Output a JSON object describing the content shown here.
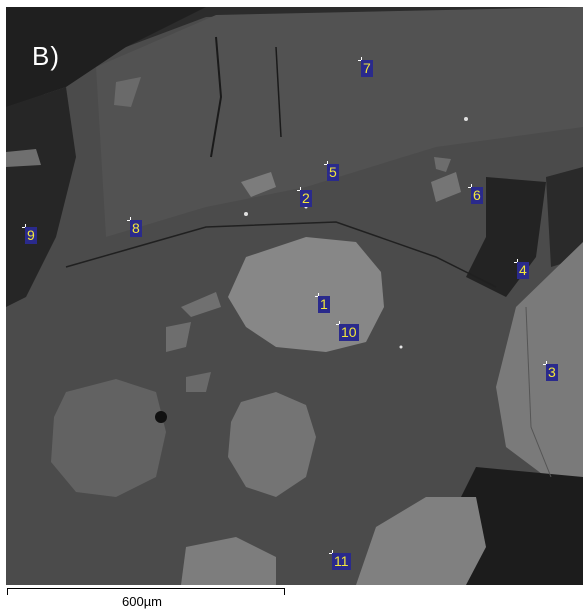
{
  "panel_label": "B)",
  "scale_label": "600µm",
  "spots": [
    {
      "id": "spot-1",
      "label": "1"
    },
    {
      "id": "spot-2",
      "label": "2"
    },
    {
      "id": "spot-3",
      "label": "3"
    },
    {
      "id": "spot-4",
      "label": "4"
    },
    {
      "id": "spot-5",
      "label": "5"
    },
    {
      "id": "spot-6",
      "label": "6"
    },
    {
      "id": "spot-7",
      "label": "7"
    },
    {
      "id": "spot-8",
      "label": "8"
    },
    {
      "id": "spot-9",
      "label": "9"
    },
    {
      "id": "spot-10",
      "label": "10"
    },
    {
      "id": "spot-11",
      "label": "11"
    }
  ],
  "colors": {
    "matrix": "#4a4a4a",
    "light_grain": "#8a8a8a",
    "dark_phase": "#1e1e1e",
    "marker_fill": "#2a2a8c",
    "marker_text": "#f4e83a"
  }
}
